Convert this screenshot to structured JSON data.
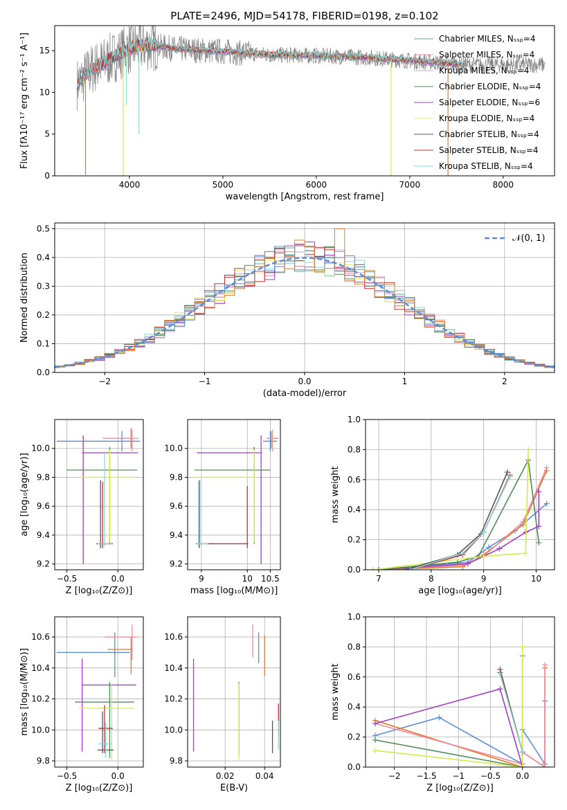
{
  "figure_title": "PLATE=2496, MJD=54178, FIBERID=0198, z=0.102",
  "colors": {
    "Chabrier MILES": "#5fa89a",
    "Salpeter MILES": "#f08aa0",
    "Kroupa MILES": "#b7a8cc",
    "Chabrier ELODIE": "#4f8a5a",
    "Salpeter ELODIE": "#a43cc4",
    "Kroupa ELODIE": "#e8e86a",
    "Chabrier STELIB": "#555555",
    "Salpeter STELIB": "#c43030",
    "Kroupa STELIB": "#8ad8d8",
    "normal": "#5b8bd6",
    "blue": "#5b8bd6",
    "orange": "#e07b2a",
    "pink": "#f08aa0",
    "purple": "#a43cc4",
    "green": "#4f8a5a",
    "lime": "#d4ea4c",
    "grey": "#555555",
    "red": "#c43030",
    "cyan": "#8ad8d8",
    "teal": "#5fa89a",
    "data": "#808080"
  },
  "chart_data": [
    {
      "id": "spectrum",
      "type": "line",
      "title": "PLATE=2496, MJD=54178, FIBERID=0198, z=0.102",
      "xlabel": "wavelength [Angstrom, rest frame]",
      "ylabel": "Flux [fλ10⁻¹⁷ erg cm⁻² s⁻¹ A⁻¹]",
      "xlim": [
        3200,
        8550
      ],
      "ylim": [
        0,
        18
      ],
      "xticks": [
        4000,
        5000,
        6000,
        7000,
        8000
      ],
      "yticks": [
        0,
        5,
        10,
        15
      ],
      "grid": false,
      "legend_position": "upper right",
      "legend": [
        "Chabrier MILES, Nₛₛₚ=4",
        "Salpeter MILES, Nₛₛₚ=4",
        "Kroupa MILES, Nₛₛₚ=4",
        "Chabrier ELODIE, Nₛₛₚ=4",
        "Salpeter ELODIE, Nₛₛₚ=6",
        "Kroupa ELODIE, Nₛₛₚ=4",
        "Chabrier STELIB, Nₛₛₚ=4",
        "Salpeter STELIB, Nₛₛₚ=4",
        "Kroupa STELIB, Nₛₛₚ=4"
      ],
      "legend_keys": [
        "Chabrier MILES",
        "Salpeter MILES",
        "Kroupa MILES",
        "Chabrier ELODIE",
        "Salpeter ELODIE",
        "Kroupa ELODIE",
        "Chabrier STELIB",
        "Salpeter STELIB",
        "Kroupa STELIB"
      ],
      "continuum": [
        [
          3440,
          11.0
        ],
        [
          3600,
          12.8
        ],
        [
          3800,
          14.0
        ],
        [
          4000,
          15.3
        ],
        [
          4200,
          15.7
        ],
        [
          4500,
          15.2
        ],
        [
          5000,
          14.9
        ],
        [
          5500,
          14.5
        ],
        [
          6000,
          14.4
        ],
        [
          6500,
          14.2
        ],
        [
          7000,
          13.8
        ],
        [
          7500,
          13.4
        ]
      ],
      "data_end": 8450,
      "model_range": [
        3440,
        7560
      ],
      "dips": [
        {
          "x": 3530,
          "y": 0.1,
          "color": "orange"
        },
        {
          "x": 3933,
          "y": 0.0,
          "color": "lime"
        },
        {
          "x": 3968,
          "y": 8.5,
          "color": "cyan"
        },
        {
          "x": 4102,
          "y": 5.0,
          "color": "cyan"
        },
        {
          "x": 6800,
          "y": 0.0,
          "color": "lime"
        },
        {
          "x": 7410,
          "y": 0.0,
          "color": "orange"
        }
      ]
    },
    {
      "id": "residuals",
      "type": "histogram",
      "xlabel": "(data-model)/error",
      "ylabel": "Normed distribution",
      "xlim": [
        -2.5,
        2.5
      ],
      "ylim": [
        0,
        0.52
      ],
      "xticks": [
        -2,
        -1,
        0,
        1,
        2
      ],
      "yticks": [
        0.0,
        0.1,
        0.2,
        0.3,
        0.4,
        0.5
      ],
      "grid": true,
      "legend_position": "upper right",
      "legend": [
        "𝒩(0, 1)"
      ],
      "bin_width": 0.1,
      "peak_bins": [
        {
          "x": 0.3,
          "height": 0.5,
          "color": "orange"
        },
        {
          "x": -0.1,
          "height": 0.46,
          "color": "orange"
        },
        {
          "x": 0.2,
          "height": 0.44,
          "color": "grey"
        }
      ]
    },
    {
      "id": "age_vs_Z",
      "type": "errorbar",
      "xlabel": "Z [log₁₀(Z/Z⊙)]",
      "ylabel": "age  [log₁₀(age/yr)]",
      "xlim": [
        -0.62,
        0.25
      ],
      "ylim": [
        9.16,
        10.2
      ],
      "xticks": [
        -0.5,
        0.0
      ],
      "yticks": [
        9.2,
        9.4,
        9.6,
        9.8,
        10.0
      ],
      "grid": true,
      "points": [
        {
          "key": "blue",
          "x": 0.04,
          "y": 10.05,
          "xl": -0.6,
          "xh": 0.22,
          "yl": 9.98,
          "yh": 10.12
        },
        {
          "key": "orange",
          "x": 0.13,
          "y": 10.07,
          "xl": -0.13,
          "xh": 0.2,
          "yl": 10.0,
          "yh": 10.14
        },
        {
          "key": "pink",
          "x": 0.14,
          "y": 10.07,
          "xl": -0.15,
          "xh": 0.2,
          "yl": 9.98,
          "yh": 10.13
        },
        {
          "key": "purple",
          "x": -0.34,
          "y": 9.97,
          "xl": -0.35,
          "xh": 0.2,
          "yl": 9.2,
          "yh": 10.09
        },
        {
          "key": "green",
          "x": -0.08,
          "y": 9.85,
          "xl": -0.5,
          "xh": 0.19,
          "yl": 9.34,
          "yh": 10.01
        },
        {
          "key": "lime",
          "x": -0.08,
          "y": 9.8,
          "xl": -0.38,
          "xh": 0.18,
          "yl": 9.35,
          "yh": 9.99
        },
        {
          "key": "grey",
          "x": -0.17,
          "y": 9.34,
          "xl": -0.21,
          "xh": -0.05,
          "yl": 9.31,
          "yh": 9.78
        },
        {
          "key": "red",
          "x": -0.15,
          "y": 9.34,
          "xl": -0.21,
          "xh": -0.05,
          "yl": 9.31,
          "yh": 9.77
        },
        {
          "key": "cyan",
          "x": -0.13,
          "y": 9.34,
          "xl": -0.2,
          "xh": -0.06,
          "yl": 9.32,
          "yh": 9.98
        }
      ]
    },
    {
      "id": "age_vs_mass",
      "type": "errorbar",
      "xlabel": "mass [log₁₀(M/M⊙)]",
      "ylabel": "",
      "xlim": [
        8.7,
        10.72
      ],
      "ylim": [
        9.16,
        10.2
      ],
      "xticks": [
        9.0,
        10.0,
        10.5
      ],
      "xticklabels": [
        "9",
        "10",
        "10.5"
      ],
      "yticks": [
        9.2,
        9.4,
        9.6,
        9.8,
        10.0
      ],
      "grid": true,
      "points": [
        {
          "key": "blue",
          "x": 10.5,
          "y": 10.05,
          "xl": 10.34,
          "xh": 10.65,
          "yl": 9.98,
          "yh": 10.12
        },
        {
          "key": "orange",
          "x": 10.52,
          "y": 10.07,
          "xl": 10.42,
          "xh": 10.68,
          "yl": 10.0,
          "yh": 10.12
        },
        {
          "key": "pink",
          "x": 10.55,
          "y": 10.07,
          "xl": 10.42,
          "xh": 10.6,
          "yl": 9.98,
          "yh": 10.13
        },
        {
          "key": "purple",
          "x": 10.3,
          "y": 9.97,
          "xl": 8.9,
          "xh": 10.32,
          "yl": 9.2,
          "yh": 10.09
        },
        {
          "key": "green",
          "x": 10.15,
          "y": 9.85,
          "xl": 8.85,
          "xh": 10.5,
          "yl": 9.34,
          "yh": 10.01
        },
        {
          "key": "lime",
          "x": 10.15,
          "y": 9.8,
          "xl": 8.8,
          "xh": 10.2,
          "yl": 9.35,
          "yh": 9.99
        },
        {
          "key": "grey",
          "x": 8.95,
          "y": 9.34,
          "xl": 8.88,
          "xh": 9.25,
          "yl": 9.31,
          "yh": 9.78
        },
        {
          "key": "red",
          "x": 10.0,
          "y": 9.34,
          "xl": 9.1,
          "xh": 10.02,
          "yl": 9.31,
          "yh": 9.74
        },
        {
          "key": "cyan",
          "x": 8.97,
          "y": 9.34,
          "xl": 8.9,
          "xh": 9.15,
          "yl": 9.32,
          "yh": 9.78
        }
      ]
    },
    {
      "id": "weight_vs_age",
      "type": "line",
      "xlabel": "age  [log₁₀(age/yr)]",
      "ylabel": "mass weight",
      "xlim": [
        6.75,
        10.35
      ],
      "ylim": [
        0,
        1.0
      ],
      "xticks": [
        7,
        8,
        9,
        10
      ],
      "yticks": [
        0.0,
        0.2,
        0.4,
        0.6,
        0.8,
        1.0
      ],
      "grid": true,
      "series": [
        {
          "key": "blue",
          "points": [
            [
              7.0,
              0.0
            ],
            [
              8.7,
              0.05
            ],
            [
              9.1,
              0.15
            ],
            [
              9.6,
              0.26
            ],
            [
              10.2,
              0.44
            ]
          ]
        },
        {
          "key": "orange",
          "points": [
            [
              6.9,
              0.0
            ],
            [
              8.6,
              0.02
            ],
            [
              9.0,
              0.1
            ],
            [
              9.75,
              0.3
            ],
            [
              10.2,
              0.66
            ]
          ]
        },
        {
          "key": "pink",
          "points": [
            [
              6.9,
              0.0
            ],
            [
              8.6,
              0.03
            ],
            [
              9.0,
              0.09
            ],
            [
              9.75,
              0.32
            ],
            [
              10.2,
              0.68
            ]
          ]
        },
        {
          "key": "purple",
          "points": [
            [
              7.0,
              0.0
            ],
            [
              8.7,
              0.04
            ],
            [
              9.3,
              0.14
            ],
            [
              9.8,
              0.25
            ],
            [
              10.05,
              0.29
            ],
            [
              10.05,
              0.52
            ]
          ]
        },
        {
          "key": "green",
          "points": [
            [
              7.0,
              0.0
            ],
            [
              8.5,
              0.05
            ],
            [
              8.9,
              0.09
            ],
            [
              9.85,
              0.73
            ],
            [
              10.05,
              0.18
            ]
          ]
        },
        {
          "key": "lime",
          "points": [
            [
              6.9,
              0.0
            ],
            [
              8.3,
              0.06
            ],
            [
              9.0,
              0.09
            ],
            [
              9.8,
              0.11
            ],
            [
              9.85,
              0.8
            ]
          ]
        },
        {
          "key": "grey",
          "points": [
            [
              7.5,
              0.0
            ],
            [
              8.5,
              0.1
            ],
            [
              8.95,
              0.24
            ],
            [
              9.45,
              0.65
            ]
          ]
        },
        {
          "key": "red",
          "points": [
            [
              7.6,
              0.0
            ],
            [
              8.6,
              0.1
            ],
            [
              9.0,
              0.25
            ],
            [
              9.5,
              0.63
            ]
          ]
        },
        {
          "key": "cyan",
          "points": [
            [
              7.6,
              0.0
            ],
            [
              8.6,
              0.11
            ],
            [
              9.0,
              0.25
            ],
            [
              9.5,
              0.62
            ]
          ]
        }
      ]
    },
    {
      "id": "mass_vs_Z",
      "type": "errorbar",
      "xlabel": "Z [log₁₀(Z/Z⊙)]",
      "ylabel": "mass [log₁₀(M/M⊙)]",
      "xlim": [
        -0.62,
        0.25
      ],
      "ylim": [
        9.76,
        10.73
      ],
      "xticks": [
        -0.5,
        0.0
      ],
      "yticks": [
        9.8,
        10.0,
        10.2,
        10.4,
        10.6
      ],
      "grid": true,
      "points": [
        {
          "key": "blue",
          "x": -0.03,
          "y": 10.5,
          "xl": -0.6,
          "xh": 0.12,
          "yl": 10.34,
          "yh": 10.63
        },
        {
          "key": "orange",
          "x": 0.13,
          "y": 10.52,
          "xl": -0.1,
          "xh": 0.15,
          "yl": 10.36,
          "yh": 10.6
        },
        {
          "key": "pink",
          "x": 0.14,
          "y": 10.6,
          "xl": -0.13,
          "xh": 0.19,
          "yl": 10.45,
          "yh": 10.68
        },
        {
          "key": "purple",
          "x": -0.35,
          "y": 10.29,
          "xl": -0.35,
          "xh": 0.18,
          "yl": 9.86,
          "yh": 10.46
        },
        {
          "key": "green",
          "x": -0.08,
          "y": 10.18,
          "xl": -0.42,
          "xh": 0.16,
          "yl": 9.82,
          "yh": 10.31
        },
        {
          "key": "lime",
          "x": -0.06,
          "y": 10.14,
          "xl": -0.38,
          "xh": 0.16,
          "yl": 9.81,
          "yh": 10.3
        },
        {
          "key": "grey",
          "x": -0.15,
          "y": 9.87,
          "xl": -0.2,
          "xh": -0.04,
          "yl": 9.85,
          "yh": 10.12
        },
        {
          "key": "red",
          "x": -0.13,
          "y": 10.01,
          "xl": -0.19,
          "xh": -0.05,
          "yl": 9.85,
          "yh": 10.16
        },
        {
          "key": "cyan",
          "x": -0.12,
          "y": 9.91,
          "xl": -0.19,
          "xh": -0.06,
          "yl": 9.82,
          "yh": 10.05
        }
      ]
    },
    {
      "id": "mass_vs_ebv",
      "type": "errorbar",
      "xlabel": "E(B-V)",
      "ylabel": "",
      "xlim": [
        0.001,
        0.048
      ],
      "ylim": [
        9.76,
        10.73
      ],
      "xticks": [
        0.02,
        0.04
      ],
      "yticks": [
        9.8,
        10.0,
        10.2,
        10.4,
        10.6
      ],
      "grid": true,
      "vlines": [
        {
          "key": "purple",
          "x": 0.004,
          "yl": 9.86,
          "yh": 10.46
        },
        {
          "key": "green",
          "x": 0.027,
          "yl": 9.84,
          "yh": 10.31
        },
        {
          "key": "lime",
          "x": 0.027,
          "yl": 9.81,
          "yh": 10.3
        },
        {
          "key": "pink",
          "x": 0.034,
          "yl": 10.47,
          "yh": 10.68
        },
        {
          "key": "blue",
          "x": 0.037,
          "yl": 10.43,
          "yh": 10.63
        },
        {
          "key": "orange",
          "x": 0.04,
          "yl": 10.35,
          "yh": 10.61
        },
        {
          "key": "grey",
          "x": 0.044,
          "yl": 9.85,
          "yh": 10.06
        },
        {
          "key": "red",
          "x": 0.047,
          "yl": 9.95,
          "yh": 10.17
        },
        {
          "key": "cyan",
          "x": 0.047,
          "yl": 9.87,
          "yh": 10.06
        }
      ]
    },
    {
      "id": "weight_vs_Z",
      "type": "line",
      "xlabel": "Z [log₁₀(Z/Z⊙)]",
      "ylabel": "mass weight",
      "xlim": [
        -2.45,
        0.5
      ],
      "ylim": [
        0,
        1.0
      ],
      "xticks": [
        -2.0,
        -1.5,
        -1.0,
        -0.5,
        0.0
      ],
      "yticks": [
        0.0,
        0.2,
        0.4,
        0.6,
        0.8,
        1.0
      ],
      "grid": true,
      "series": [
        {
          "key": "blue",
          "points": [
            [
              -2.3,
              0.21
            ],
            [
              -1.3,
              0.33
            ],
            [
              0.0,
              0.02
            ],
            [
              0.0,
              0.25
            ],
            [
              0.35,
              0.02
            ],
            [
              0.35,
              0.44
            ]
          ]
        },
        {
          "key": "orange",
          "points": [
            [
              -2.3,
              0.31
            ],
            [
              0.0,
              0.0
            ],
            [
              0.0,
              0.1
            ],
            [
              0.35,
              0.0
            ],
            [
              0.35,
              0.66
            ]
          ]
        },
        {
          "key": "pink",
          "points": [
            [
              -2.3,
              0.29
            ],
            [
              0.0,
              0.02
            ],
            [
              0.0,
              0.1
            ],
            [
              0.35,
              0.0
            ],
            [
              0.35,
              0.68
            ]
          ]
        },
        {
          "key": "purple",
          "points": [
            [
              -2.3,
              0.29
            ],
            [
              -0.35,
              0.52
            ],
            [
              0.0,
              0.0
            ]
          ]
        },
        {
          "key": "green",
          "points": [
            [
              -2.3,
              0.18
            ],
            [
              0.0,
              0.0
            ],
            [
              0.0,
              0.74
            ]
          ]
        },
        {
          "key": "lime",
          "points": [
            [
              -2.3,
              0.11
            ],
            [
              0.0,
              0.0
            ],
            [
              0.0,
              0.8
            ]
          ]
        },
        {
          "key": "grey",
          "points": [
            [
              -0.35,
              0.65
            ],
            [
              0.0,
              0.1
            ]
          ]
        },
        {
          "key": "red",
          "points": [
            [
              -0.35,
              0.63
            ],
            [
              0.0,
              0.1
            ]
          ]
        },
        {
          "key": "cyan",
          "points": [
            [
              -0.35,
              0.62
            ],
            [
              0.0,
              0.1
            ]
          ]
        }
      ]
    }
  ]
}
